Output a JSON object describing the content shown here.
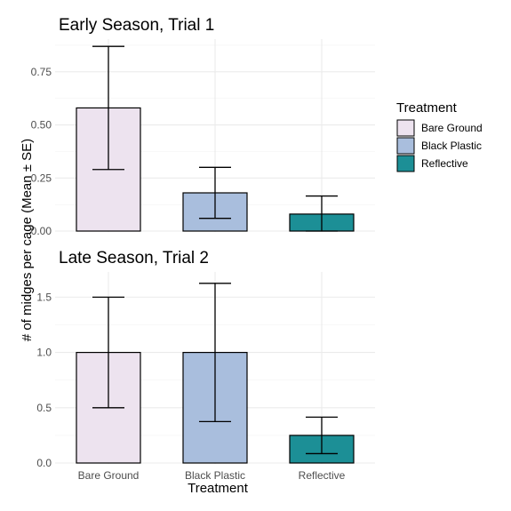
{
  "chart_data": {
    "type": "bar",
    "xlabel": "Treatment",
    "ylabel": "# of midges per cage (Mean ± SE)",
    "categories": [
      "Bare Ground",
      "Black Plastic",
      "Reflective"
    ],
    "colors": {
      "Bare Ground": "#ede3ef",
      "Black Plastic": "#a9bedd",
      "Reflective": "#1c8f96"
    },
    "legend": {
      "title": "Treatment",
      "placement": "right",
      "entries": [
        "Bare Ground",
        "Black Plastic",
        "Reflective"
      ]
    },
    "grid": true,
    "panels": [
      {
        "title": "Early Season, Trial 1",
        "values": [
          0.58,
          0.18,
          0.08
        ],
        "err_low": [
          0.29,
          0.06,
          0.0
        ],
        "err_high": [
          0.87,
          0.3,
          0.165
        ],
        "ylim": [
          0,
          0.9
        ],
        "yticks": [
          0.0,
          0.25,
          0.5,
          0.75
        ],
        "ytick_labels": [
          "0.00",
          "0.25",
          "0.50",
          "0.75"
        ]
      },
      {
        "title": "Late Season, Trial 2",
        "values": [
          1.0,
          1.0,
          0.25
        ],
        "err_low": [
          0.5,
          0.375,
          0.085
        ],
        "err_high": [
          1.5,
          1.625,
          0.415
        ],
        "ylim": [
          0,
          1.72
        ],
        "yticks": [
          0.0,
          0.5,
          1.0,
          1.5
        ],
        "ytick_labels": [
          "0.0",
          "0.5",
          "1.0",
          "1.5"
        ]
      }
    ]
  }
}
